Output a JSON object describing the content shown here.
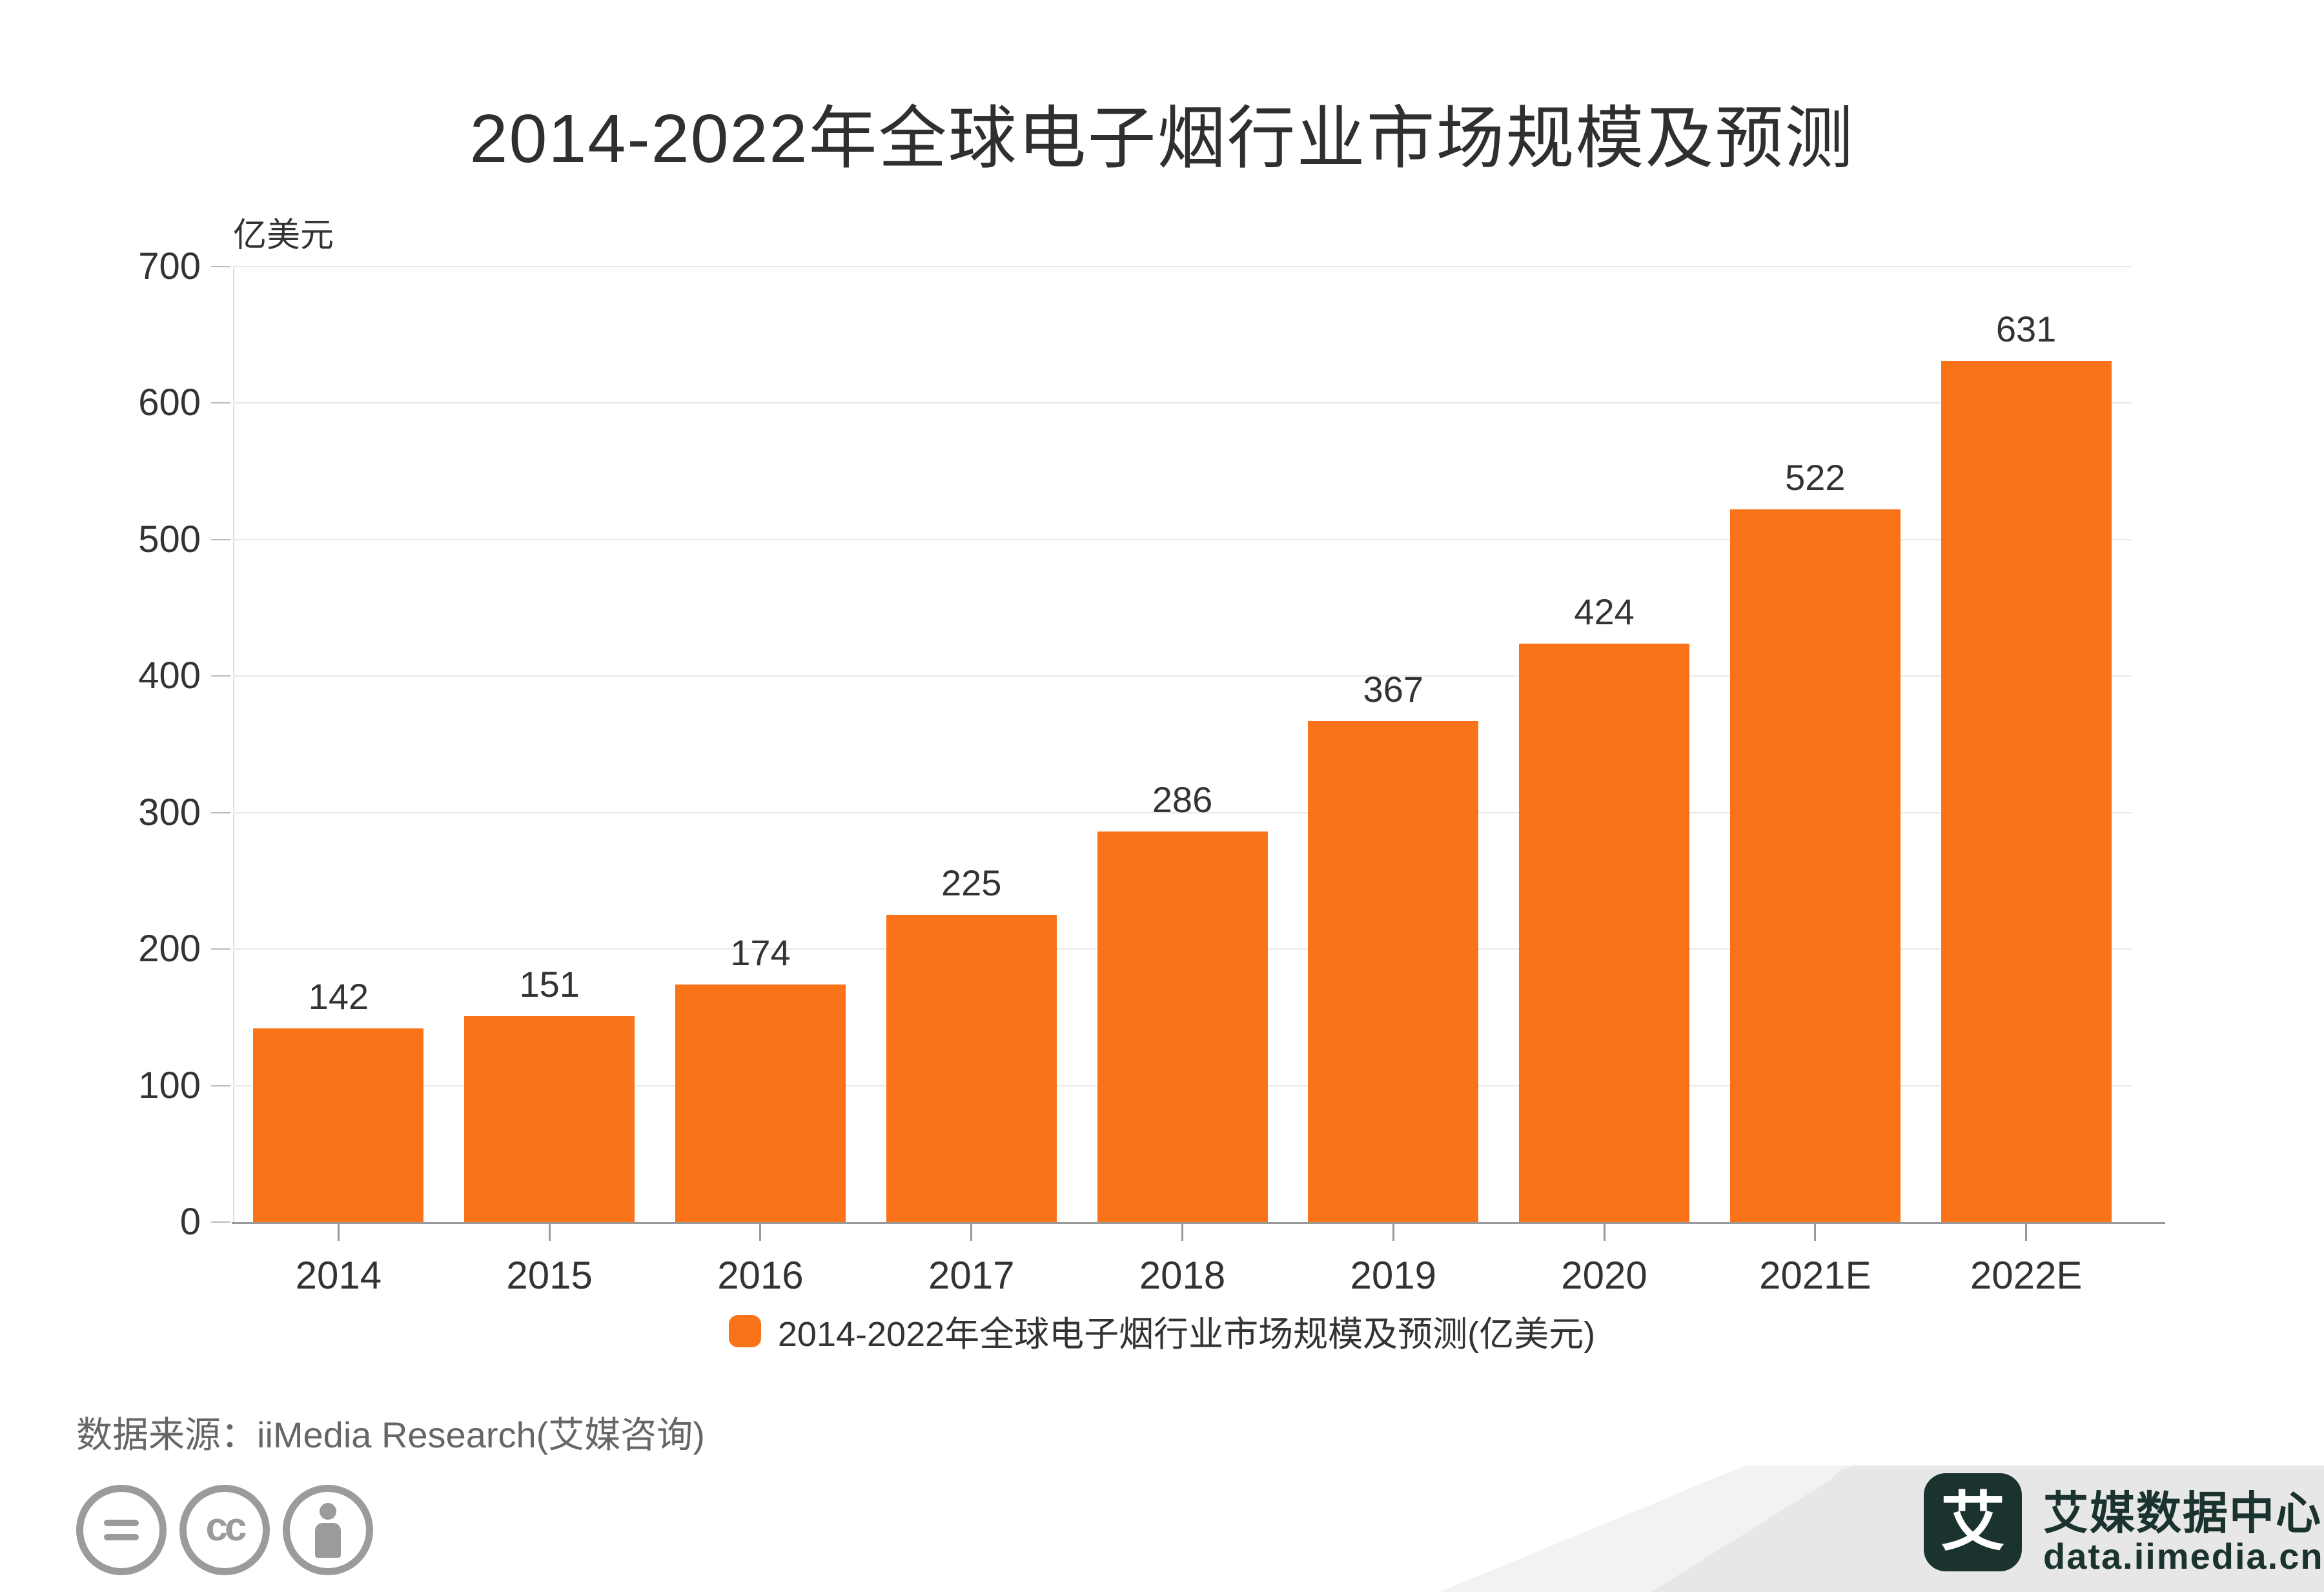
{
  "title": "2014-2022年全球电子烟行业市场规模及预测",
  "chart_data": {
    "type": "bar",
    "title": "2014-2022年全球电子烟行业市场规模及预测",
    "unit_label": "亿美元",
    "categories": [
      "2014",
      "2015",
      "2016",
      "2017",
      "2018",
      "2019",
      "2020",
      "2021E",
      "2022E"
    ],
    "values": [
      142,
      151,
      174,
      225,
      286,
      367,
      424,
      522,
      631
    ],
    "ylim": [
      0,
      700
    ],
    "yticks": [
      0,
      100,
      200,
      300,
      400,
      500,
      600,
      700
    ],
    "grid": true,
    "legend_position": "bottom",
    "bar_color": "#FA7318"
  },
  "legend": {
    "label": "2014-2022年全球电子烟行业市场规模及预测(亿美元)",
    "swatch_color": "#FA7318"
  },
  "source": {
    "text": "数据来源：iiMedia Research(艾媒咨询)"
  },
  "license_icons": {
    "cc_label": "cc"
  },
  "logo": {
    "mark_char": "艾",
    "name_text": "艾媒数据中心",
    "url_text": "data.iimedia.cn",
    "text_color": "#1b332e",
    "badge_color": "#e7e7e7"
  },
  "colors": {
    "bar": "#FA7318",
    "grid": "#e9e9e9",
    "axis": "#999999",
    "text": "#333333",
    "source_text": "#666666",
    "icon_gray": "#9b9b9b"
  }
}
